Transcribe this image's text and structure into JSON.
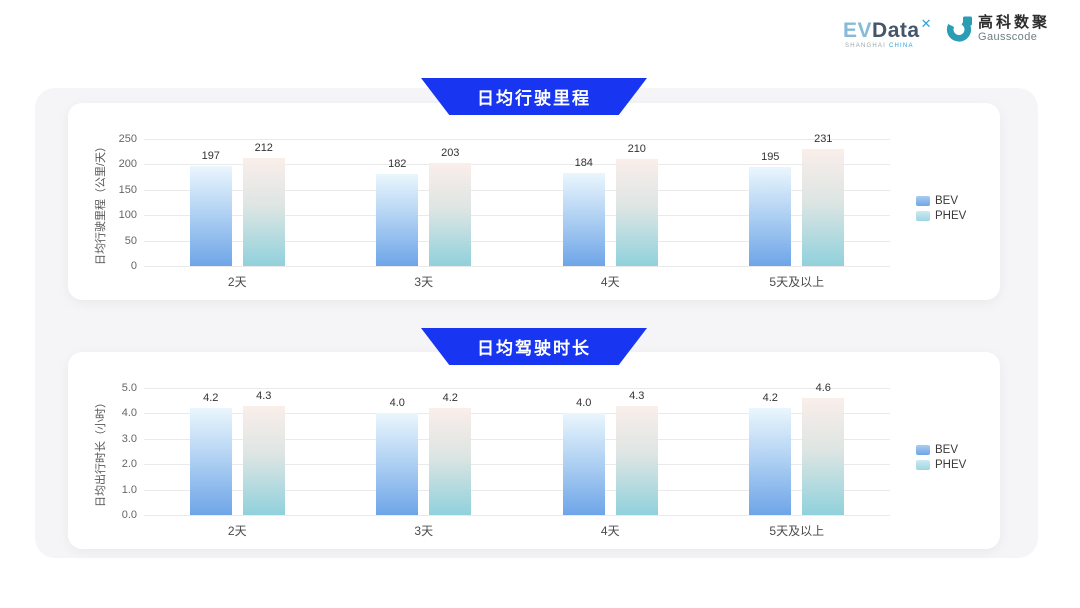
{
  "header": {
    "evdata_logo": {
      "ev": "EV",
      "data": "Data",
      "x": "✕",
      "sub_left": "SHANGHAI",
      "sub_right": "CHINA"
    },
    "gausscode_logo": {
      "cn": "高科数聚",
      "en": "Gausscode"
    }
  },
  "colors": {
    "banner_blue": "#1836f2",
    "bev_gradient_top": "#eaf6fd",
    "bev_gradient_bottom": "#6ea5e8",
    "phev_gradient_top": "#faeeea",
    "phev_gradient_bottom": "#90d1dc",
    "gausscode_teal": "#2a9db5",
    "evdata_light_blue": "#85bbd8",
    "evdata_dark": "#45566b",
    "card_background": "#ffffff",
    "panel_background": "#f5f5f7"
  },
  "chart_data": [
    {
      "type": "bar",
      "title": "日均行驶里程",
      "ylabel": "日均行驶里程（公里/天）",
      "categories": [
        "2天",
        "3天",
        "4天",
        "5天及以上"
      ],
      "series": [
        {
          "name": "BEV",
          "values": [
            197,
            182,
            184,
            195
          ],
          "labels": [
            "197",
            "182",
            "184",
            "195"
          ]
        },
        {
          "name": "PHEV",
          "values": [
            212,
            203,
            210,
            231
          ],
          "labels": [
            "212",
            "203",
            "210",
            "231"
          ]
        }
      ],
      "ylim": [
        0,
        250
      ],
      "yticks": [
        "0",
        "50",
        "100",
        "150",
        "200",
        "250"
      ],
      "grid": true,
      "legend_position": "right"
    },
    {
      "type": "bar",
      "title": "日均驾驶时长",
      "ylabel": "日均出行时长（小时）",
      "categories": [
        "2天",
        "3天",
        "4天",
        "5天及以上"
      ],
      "series": [
        {
          "name": "BEV",
          "values": [
            4.2,
            4.0,
            4.0,
            4.2
          ],
          "labels": [
            "4.2",
            "4.0",
            "4.0",
            "4.2"
          ]
        },
        {
          "name": "PHEV",
          "values": [
            4.3,
            4.2,
            4.3,
            4.6
          ],
          "labels": [
            "4.3",
            "4.2",
            "4.3",
            "4.6"
          ]
        }
      ],
      "ylim": [
        0,
        5
      ],
      "yticks": [
        "0.0",
        "1.0",
        "2.0",
        "3.0",
        "4.0",
        "5.0"
      ],
      "grid": true,
      "legend_position": "right"
    }
  ]
}
